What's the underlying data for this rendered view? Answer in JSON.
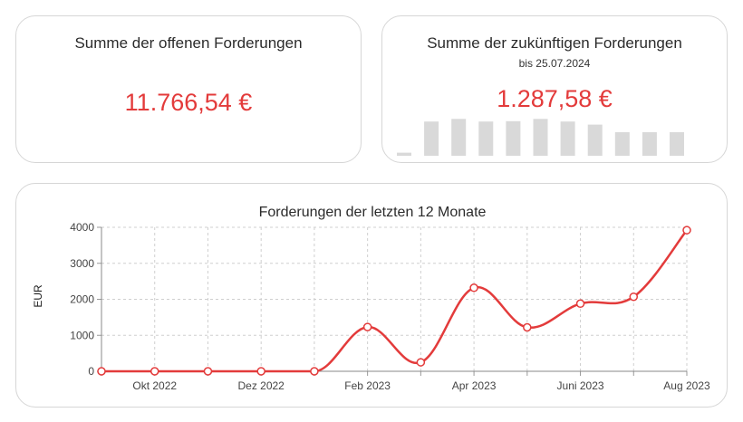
{
  "open_receivables": {
    "title": "Summe der offenen Forderungen",
    "amount": "11.766,54 €"
  },
  "future_receivables": {
    "title": "Summe der zukünftigen Forderungen",
    "subtitle": "bis 25.07.2024",
    "amount": "1.287,58 €",
    "bar_values": [
      0.08,
      0.9,
      0.97,
      0.9,
      0.91,
      0.97,
      0.9,
      0.82,
      0.62,
      0.62,
      0.62
    ],
    "bar_color": "#d9d9d9"
  },
  "chart_data": {
    "type": "line",
    "title": "Forderungen der letzten 12 Monate",
    "xlabel": "",
    "ylabel": "EUR",
    "x": [
      "2022-09",
      "2022-10",
      "2022-11",
      "2022-12",
      "2023-01",
      "2023-02",
      "2023-03",
      "2023-04",
      "2023-05",
      "2023-06",
      "2023-07",
      "2023-08"
    ],
    "x_tick_labels": [
      "",
      "Okt 2022",
      "",
      "Dez 2022",
      "",
      "Feb 2023",
      "",
      "Apr 2023",
      "",
      "Juni 2023",
      "",
      "Aug 2023"
    ],
    "series": [
      {
        "values": [
          0,
          0,
          0,
          0,
          0,
          1230,
          250,
          2320,
          1220,
          1880,
          2070,
          3920
        ],
        "color": "#e33b3b"
      }
    ],
    "ylim": [
      0,
      4000
    ],
    "yticks": [
      "0",
      "1000",
      "2000",
      "3000",
      "4000"
    ],
    "ytick_values": [
      0,
      1000,
      2000,
      3000,
      4000
    ],
    "grid": true,
    "smooth": true
  }
}
